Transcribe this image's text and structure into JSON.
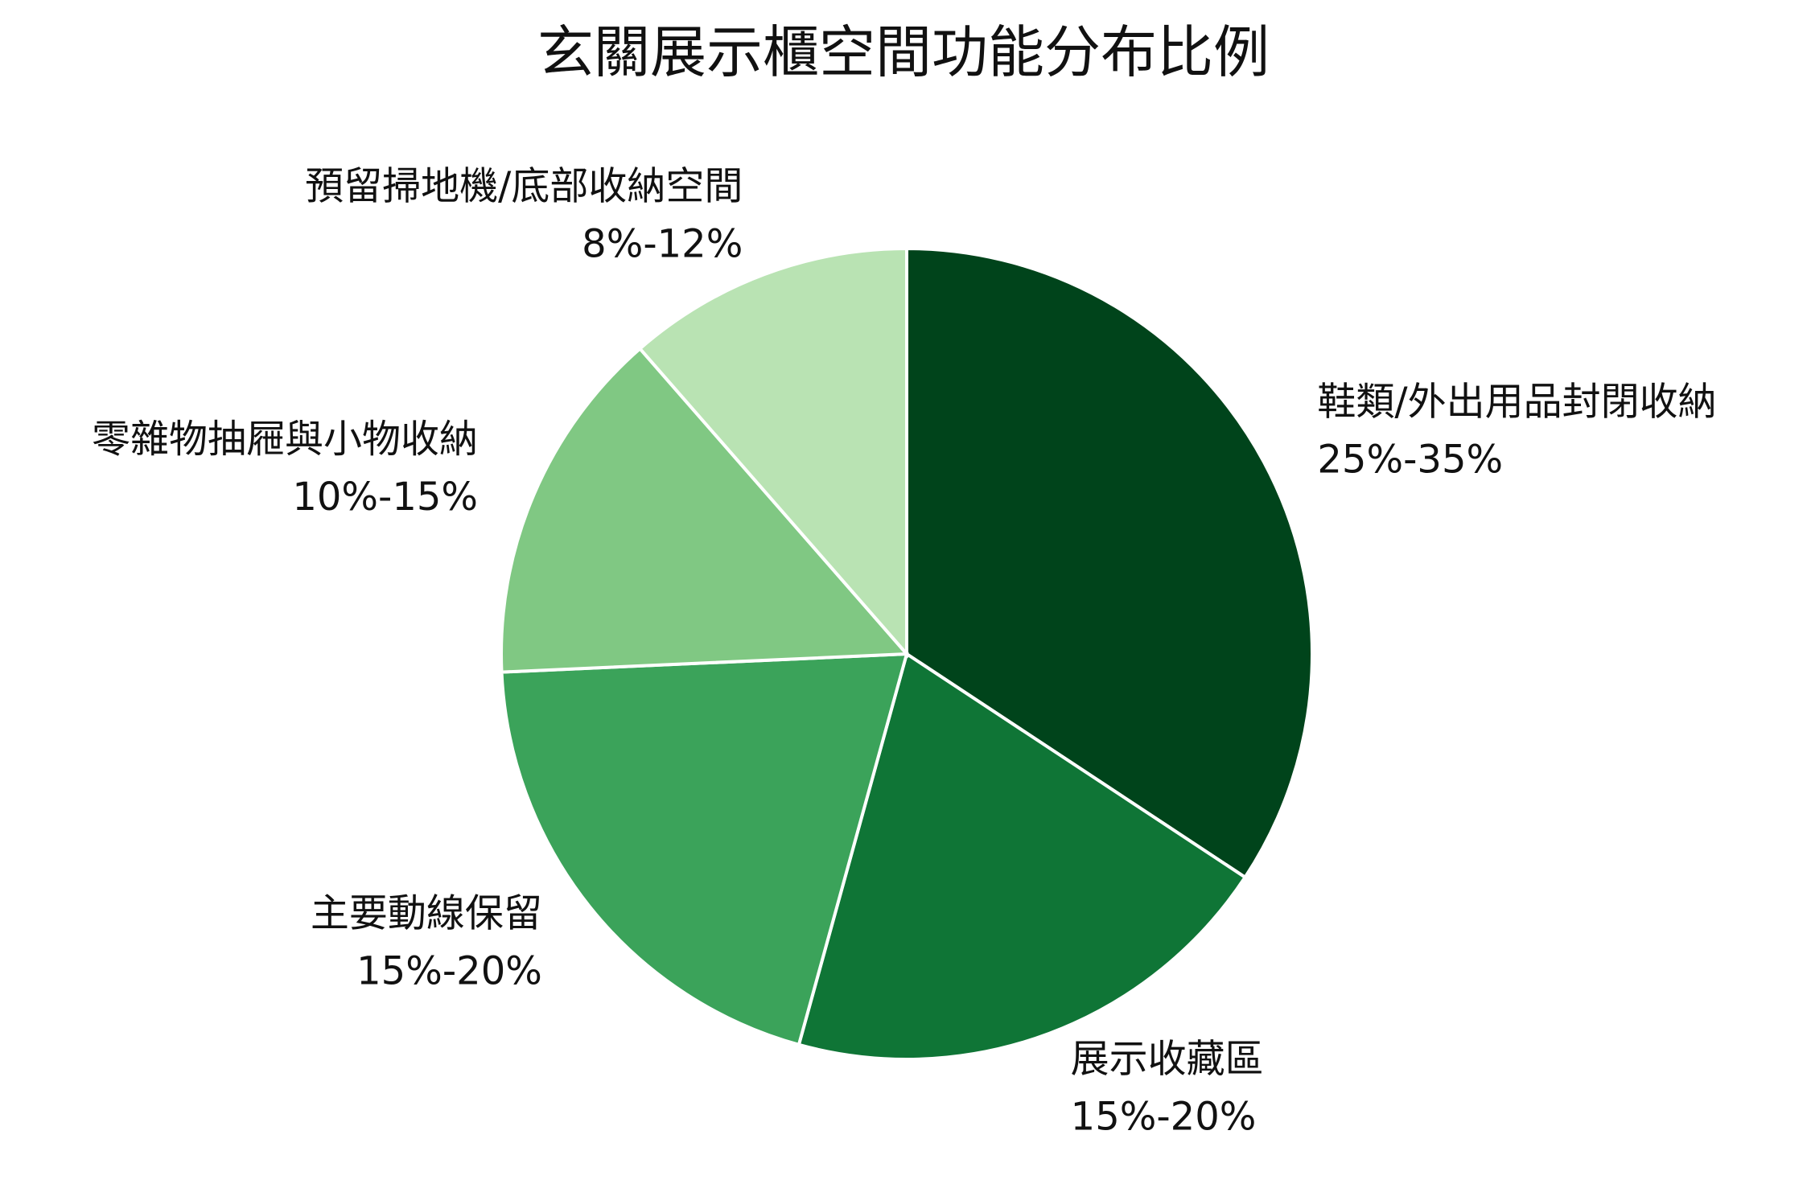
{
  "chart_data": {
    "type": "pie",
    "title": "玄關展示櫃空間功能分布比例",
    "categories": [
      "鞋類/外出用品封閉收納",
      "展示收藏區",
      "主要動線保留",
      "零雜物抽屜與小物收納",
      "預留掃地機/底部收納空間"
    ],
    "ranges": [
      "25%-35%",
      "15%-20%",
      "15%-20%",
      "10%-15%",
      "8%-12%"
    ],
    "values": [
      30,
      17.5,
      17.5,
      12.5,
      10
    ],
    "colors": [
      "#00441b",
      "#0f7536",
      "#3ba35a",
      "#80c883",
      "#b9e3b3"
    ]
  }
}
